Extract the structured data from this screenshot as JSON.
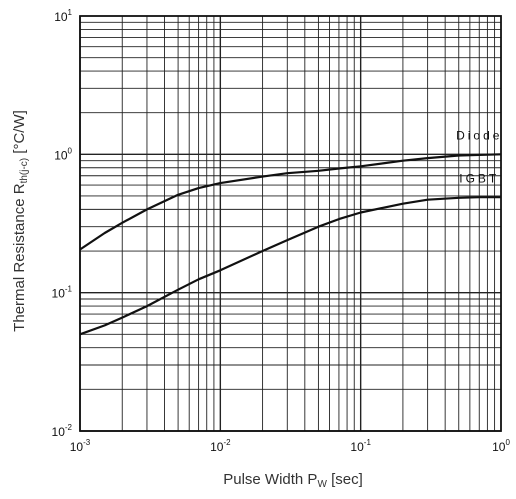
{
  "chart_data": {
    "type": "line",
    "x_scale": "log",
    "y_scale": "log",
    "xlim": [
      0.001,
      1
    ],
    "ylim": [
      0.01,
      10
    ],
    "grid": true,
    "xlabel": {
      "main": "Pulse Width P",
      "sub": "W",
      "unit": " [sec]"
    },
    "ylabel": {
      "main": "Thermal Resistance R",
      "sub": "th(j-c)",
      "unit": " [°C/W]"
    },
    "x_ticks": [
      {
        "value": 0.001,
        "base": "10",
        "exp": "-3"
      },
      {
        "value": 0.01,
        "base": "10",
        "exp": "-2"
      },
      {
        "value": 0.1,
        "base": "10",
        "exp": "-1"
      },
      {
        "value": 1,
        "base": "10",
        "exp": "0"
      }
    ],
    "y_ticks": [
      {
        "value": 0.01,
        "base": "10",
        "exp": "-2"
      },
      {
        "value": 0.1,
        "base": "10",
        "exp": "-1"
      },
      {
        "value": 1,
        "base": "10",
        "exp": "0"
      },
      {
        "value": 10,
        "base": "10",
        "exp": "1"
      }
    ],
    "series": [
      {
        "name": "Diode",
        "color": "#111111",
        "x": [
          0.001,
          0.0015,
          0.002,
          0.003,
          0.005,
          0.007,
          0.01,
          0.02,
          0.03,
          0.05,
          0.07,
          0.1,
          0.2,
          0.3,
          0.5,
          0.7,
          1
        ],
        "y": [
          0.205,
          0.27,
          0.32,
          0.4,
          0.51,
          0.57,
          0.62,
          0.69,
          0.73,
          0.76,
          0.79,
          0.82,
          0.9,
          0.94,
          0.98,
          0.99,
          1.0
        ]
      },
      {
        "name": "IGBT",
        "color": "#111111",
        "x": [
          0.001,
          0.0015,
          0.002,
          0.003,
          0.005,
          0.007,
          0.01,
          0.02,
          0.03,
          0.05,
          0.07,
          0.1,
          0.2,
          0.3,
          0.5,
          0.7,
          1
        ],
        "y": [
          0.05,
          0.058,
          0.066,
          0.08,
          0.105,
          0.125,
          0.145,
          0.2,
          0.24,
          0.3,
          0.34,
          0.38,
          0.44,
          0.47,
          0.485,
          0.49,
          0.49
        ]
      }
    ]
  }
}
